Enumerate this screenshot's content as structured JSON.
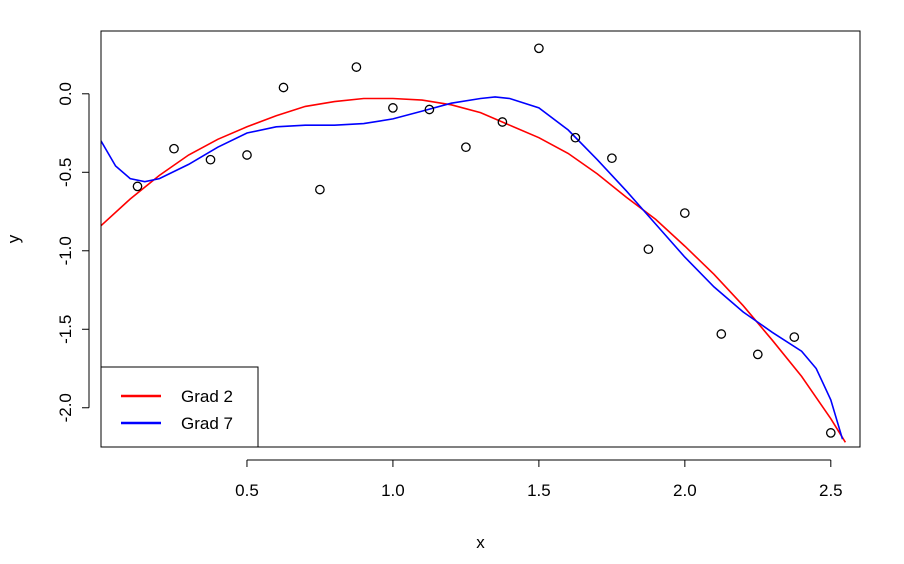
{
  "chart_data": {
    "type": "scatter",
    "xlabel": "x",
    "ylabel": "y",
    "xlim": [
      0.0,
      2.6
    ],
    "ylim": [
      -2.25,
      0.4
    ],
    "x_ticks": [
      0.5,
      1.0,
      1.5,
      2.0,
      2.5
    ],
    "x_tick_labels": [
      "0.5",
      "1.0",
      "1.5",
      "2.0",
      "2.5"
    ],
    "y_ticks": [
      0.0,
      -0.5,
      -1.0,
      -1.5,
      -2.0
    ],
    "y_tick_labels": [
      "0.0",
      "-0.5",
      "-1.0",
      "-1.5",
      "-2.0"
    ],
    "grid": false,
    "legend_position": "bottom-left",
    "points": {
      "x": [
        0.125,
        0.25,
        0.375,
        0.5,
        0.625,
        0.75,
        0.875,
        1.0,
        1.125,
        1.25,
        1.375,
        1.5,
        1.625,
        1.75,
        1.875,
        2.0,
        2.125,
        2.25,
        2.375,
        2.5
      ],
      "y": [
        -0.59,
        -0.35,
        -0.42,
        -0.39,
        0.04,
        -0.61,
        0.17,
        -0.09,
        -0.1,
        -0.34,
        -0.18,
        0.29,
        -0.28,
        -0.41,
        -0.99,
        -0.76,
        -1.53,
        -1.66,
        -1.55,
        -2.16
      ]
    },
    "series": [
      {
        "name": "Grad 2",
        "color": "#ff0000",
        "x": [
          0.0,
          0.1,
          0.2,
          0.3,
          0.4,
          0.5,
          0.6,
          0.7,
          0.8,
          0.9,
          1.0,
          1.1,
          1.2,
          1.3,
          1.4,
          1.5,
          1.6,
          1.7,
          1.8,
          1.9,
          2.0,
          2.1,
          2.2,
          2.3,
          2.4,
          2.5,
          2.55
        ],
        "y": [
          -0.84,
          -0.67,
          -0.52,
          -0.39,
          -0.29,
          -0.21,
          -0.14,
          -0.08,
          -0.05,
          -0.03,
          -0.03,
          -0.04,
          -0.07,
          -0.12,
          -0.2,
          -0.28,
          -0.38,
          -0.51,
          -0.66,
          -0.8,
          -0.97,
          -1.15,
          -1.35,
          -1.57,
          -1.8,
          -2.07,
          -2.22
        ]
      },
      {
        "name": "Grad 7",
        "color": "#0000ff",
        "x": [
          0.0,
          0.05,
          0.1,
          0.15,
          0.2,
          0.3,
          0.4,
          0.5,
          0.6,
          0.7,
          0.8,
          0.9,
          1.0,
          1.1,
          1.2,
          1.3,
          1.35,
          1.4,
          1.5,
          1.6,
          1.7,
          1.8,
          1.9,
          2.0,
          2.1,
          2.2,
          2.3,
          2.4,
          2.45,
          2.5,
          2.54
        ],
        "y": [
          -0.3,
          -0.46,
          -0.54,
          -0.56,
          -0.54,
          -0.45,
          -0.34,
          -0.25,
          -0.21,
          -0.2,
          -0.2,
          -0.19,
          -0.16,
          -0.11,
          -0.06,
          -0.03,
          -0.02,
          -0.03,
          -0.09,
          -0.23,
          -0.42,
          -0.62,
          -0.83,
          -1.04,
          -1.23,
          -1.39,
          -1.52,
          -1.64,
          -1.75,
          -1.95,
          -2.2
        ]
      }
    ]
  }
}
